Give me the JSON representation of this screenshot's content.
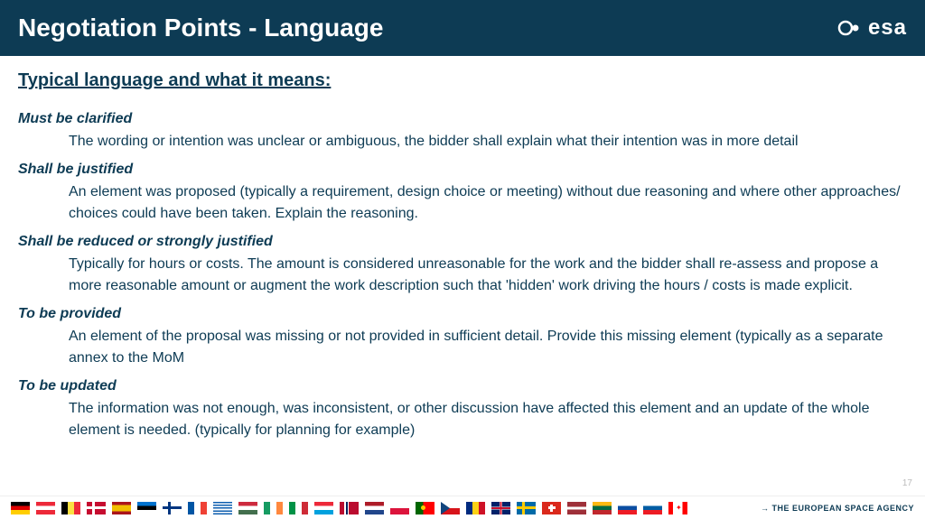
{
  "header": {
    "title": "Negotiation Points - Language",
    "logo_text": "esa"
  },
  "content": {
    "subtitle": "Typical language and what it means:",
    "terms": [
      {
        "name": "Must be clarified",
        "definition": "The wording or intention was unclear or ambiguous, the bidder shall explain what their intention was in more detail"
      },
      {
        "name": "Shall be justified",
        "definition": "An element was proposed (typically a requirement, design choice or meeting) without due reasoning and where other approaches/ choices could have been taken. Explain the reasoning."
      },
      {
        "name": "Shall be reduced or strongly justified",
        "definition": "Typically for hours or costs. The amount is considered unreasonable for the work and the bidder shall re-assess and propose a more reasonable amount or augment the work description such that 'hidden' work driving the hours / costs is made explicit."
      },
      {
        "name": "To be provided",
        "definition": "An element of the proposal was missing or not provided in sufficient detail. Provide this missing element (typically as a separate annex to the MoM"
      },
      {
        "name": "To be updated",
        "definition": "The information was not enough, was inconsistent, or other discussion have affected this element and an update of the whole element is needed. (typically for  planning for example)"
      }
    ]
  },
  "page_number": "17",
  "footer": {
    "tagline": "THE EUROPEAN SPACE AGENCY",
    "flags": [
      "de",
      "at",
      "be",
      "dk",
      "es",
      "ee",
      "fi",
      "fr",
      "gr",
      "hu",
      "ie",
      "it",
      "lu",
      "no",
      "nl",
      "pl",
      "pt",
      "cz",
      "ro",
      "gb",
      "se",
      "ch",
      "lv",
      "lt",
      "sk",
      "si",
      "ca"
    ]
  },
  "colors": {
    "header_bg": "#0d3b54",
    "text": "#0d3b54",
    "page_num": "#bbbbbb"
  }
}
